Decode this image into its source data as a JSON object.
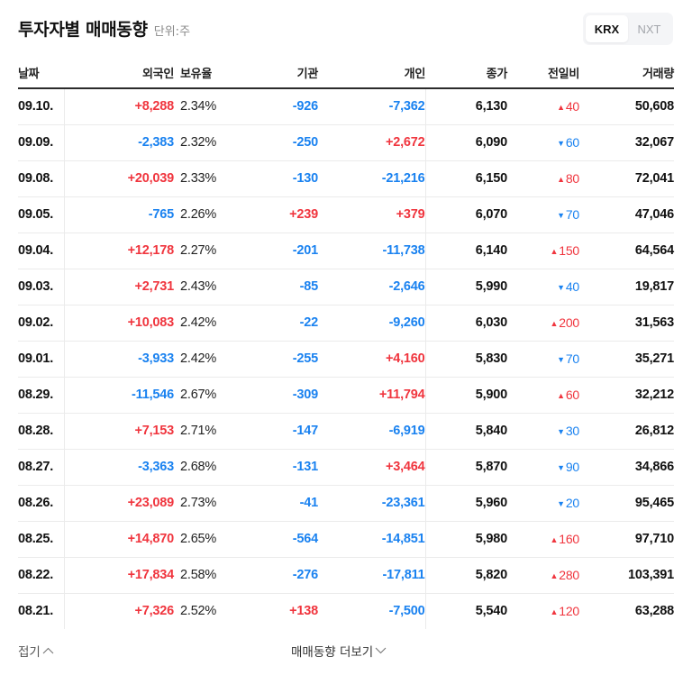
{
  "header": {
    "title": "투자자별 매매동향",
    "unit": "단위:주"
  },
  "market_toggle": {
    "options": [
      "KRX",
      "NXT"
    ],
    "selected": "KRX"
  },
  "columns": [
    "날짜",
    "외국인",
    "보유율",
    "기관",
    "개인",
    "종가",
    "전일비",
    "거래량"
  ],
  "rows": [
    {
      "date": "09.10.",
      "foreign": "+8,288",
      "foreign_dir": "up",
      "holding": "2.34%",
      "inst": "-926",
      "inst_dir": "down",
      "indiv": "-7,362",
      "indiv_dir": "down",
      "close": "6,130",
      "change": "40",
      "change_dir": "up",
      "volume": "50,608"
    },
    {
      "date": "09.09.",
      "foreign": "-2,383",
      "foreign_dir": "down",
      "holding": "2.32%",
      "inst": "-250",
      "inst_dir": "down",
      "indiv": "+2,672",
      "indiv_dir": "up",
      "close": "6,090",
      "change": "60",
      "change_dir": "down",
      "volume": "32,067"
    },
    {
      "date": "09.08.",
      "foreign": "+20,039",
      "foreign_dir": "up",
      "holding": "2.33%",
      "inst": "-130",
      "inst_dir": "down",
      "indiv": "-21,216",
      "indiv_dir": "down",
      "close": "6,150",
      "change": "80",
      "change_dir": "up",
      "volume": "72,041"
    },
    {
      "date": "09.05.",
      "foreign": "-765",
      "foreign_dir": "down",
      "holding": "2.26%",
      "inst": "+239",
      "inst_dir": "up",
      "indiv": "+379",
      "indiv_dir": "up",
      "close": "6,070",
      "change": "70",
      "change_dir": "down",
      "volume": "47,046"
    },
    {
      "date": "09.04.",
      "foreign": "+12,178",
      "foreign_dir": "up",
      "holding": "2.27%",
      "inst": "-201",
      "inst_dir": "down",
      "indiv": "-11,738",
      "indiv_dir": "down",
      "close": "6,140",
      "change": "150",
      "change_dir": "up",
      "volume": "64,564"
    },
    {
      "date": "09.03.",
      "foreign": "+2,731",
      "foreign_dir": "up",
      "holding": "2.43%",
      "inst": "-85",
      "inst_dir": "down",
      "indiv": "-2,646",
      "indiv_dir": "down",
      "close": "5,990",
      "change": "40",
      "change_dir": "down",
      "volume": "19,817"
    },
    {
      "date": "09.02.",
      "foreign": "+10,083",
      "foreign_dir": "up",
      "holding": "2.42%",
      "inst": "-22",
      "inst_dir": "down",
      "indiv": "-9,260",
      "indiv_dir": "down",
      "close": "6,030",
      "change": "200",
      "change_dir": "up",
      "volume": "31,563"
    },
    {
      "date": "09.01.",
      "foreign": "-3,933",
      "foreign_dir": "down",
      "holding": "2.42%",
      "inst": "-255",
      "inst_dir": "down",
      "indiv": "+4,160",
      "indiv_dir": "up",
      "close": "5,830",
      "change": "70",
      "change_dir": "down",
      "volume": "35,271"
    },
    {
      "date": "08.29.",
      "foreign": "-11,546",
      "foreign_dir": "down",
      "holding": "2.67%",
      "inst": "-309",
      "inst_dir": "down",
      "indiv": "+11,794",
      "indiv_dir": "up",
      "close": "5,900",
      "change": "60",
      "change_dir": "up",
      "volume": "32,212"
    },
    {
      "date": "08.28.",
      "foreign": "+7,153",
      "foreign_dir": "up",
      "holding": "2.71%",
      "inst": "-147",
      "inst_dir": "down",
      "indiv": "-6,919",
      "indiv_dir": "down",
      "close": "5,840",
      "change": "30",
      "change_dir": "down",
      "volume": "26,812"
    },
    {
      "date": "08.27.",
      "foreign": "-3,363",
      "foreign_dir": "down",
      "holding": "2.68%",
      "inst": "-131",
      "inst_dir": "down",
      "indiv": "+3,464",
      "indiv_dir": "up",
      "close": "5,870",
      "change": "90",
      "change_dir": "down",
      "volume": "34,866"
    },
    {
      "date": "08.26.",
      "foreign": "+23,089",
      "foreign_dir": "up",
      "holding": "2.73%",
      "inst": "-41",
      "inst_dir": "down",
      "indiv": "-23,361",
      "indiv_dir": "down",
      "close": "5,960",
      "change": "20",
      "change_dir": "down",
      "volume": "95,465"
    },
    {
      "date": "08.25.",
      "foreign": "+14,870",
      "foreign_dir": "up",
      "holding": "2.65%",
      "inst": "-564",
      "inst_dir": "down",
      "indiv": "-14,851",
      "indiv_dir": "down",
      "close": "5,980",
      "change": "160",
      "change_dir": "up",
      "volume": "97,710"
    },
    {
      "date": "08.22.",
      "foreign": "+17,834",
      "foreign_dir": "up",
      "holding": "2.58%",
      "inst": "-276",
      "inst_dir": "down",
      "indiv": "-17,811",
      "indiv_dir": "down",
      "close": "5,820",
      "change": "280",
      "change_dir": "up",
      "volume": "103,391"
    },
    {
      "date": "08.21.",
      "foreign": "+7,326",
      "foreign_dir": "up",
      "holding": "2.52%",
      "inst": "+138",
      "inst_dir": "up",
      "indiv": "-7,500",
      "indiv_dir": "down",
      "close": "5,540",
      "change": "120",
      "change_dir": "up",
      "volume": "63,288"
    }
  ],
  "footer": {
    "collapse_label": "접기",
    "more_label": "매매동향 더보기"
  },
  "colors": {
    "up": "#f0353e",
    "down": "#1a82f0"
  },
  "icons": {
    "up": "▲",
    "down": "▼",
    "chevron_up": "chevron-up-icon",
    "chevron_down": "chevron-down-icon"
  }
}
